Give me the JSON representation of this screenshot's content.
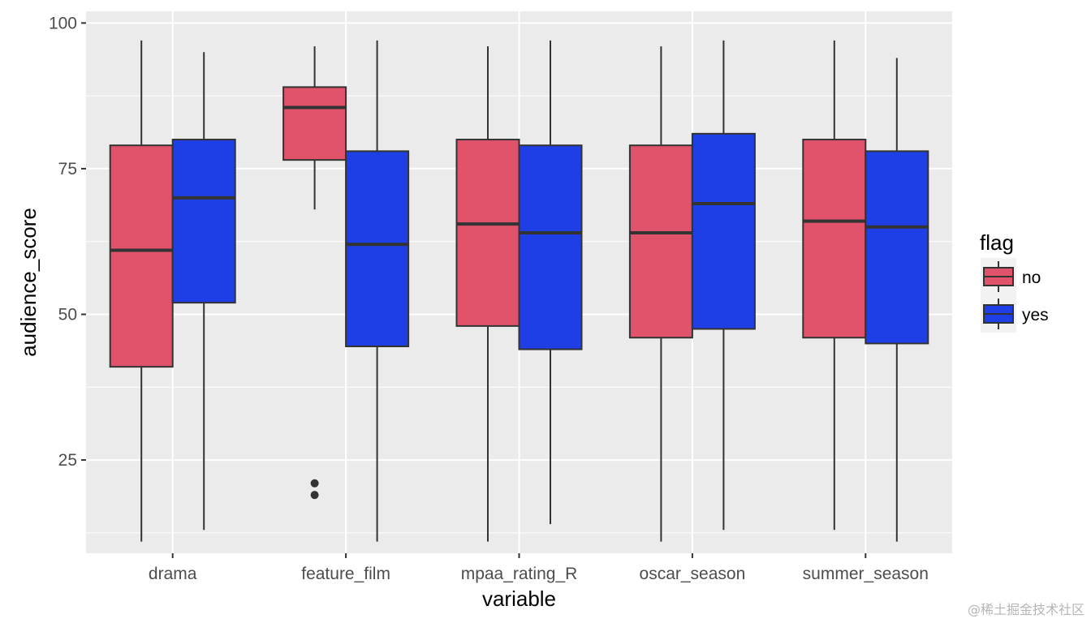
{
  "chart_data": {
    "type": "boxplot",
    "xlabel": "variable",
    "ylabel": "audience_score",
    "ylim": [
      9,
      102
    ],
    "yticks": [
      25,
      50,
      75,
      100
    ],
    "categories": [
      "drama",
      "feature_film",
      "mpaa_rating_R",
      "oscar_season",
      "summer_season"
    ],
    "legend": {
      "title": "flag",
      "position": "right",
      "entries": [
        {
          "name": "no",
          "color": "#e0536b"
        },
        {
          "name": "yes",
          "color": "#1e3fe6"
        }
      ]
    },
    "series": [
      {
        "name": "no",
        "color": "#e0536b",
        "boxes": [
          {
            "category": "drama",
            "min": 11,
            "q1": 41,
            "median": 61,
            "q3": 79,
            "max": 97,
            "outliers": []
          },
          {
            "category": "feature_film",
            "min": 68,
            "q1": 76.5,
            "median": 85.5,
            "q3": 89,
            "max": 96,
            "outliers": [
              21,
              19
            ]
          },
          {
            "category": "mpaa_rating_R",
            "min": 11,
            "q1": 48,
            "median": 65.5,
            "q3": 80,
            "max": 96,
            "outliers": []
          },
          {
            "category": "oscar_season",
            "min": 11,
            "q1": 46,
            "median": 64,
            "q3": 79,
            "max": 96,
            "outliers": []
          },
          {
            "category": "summer_season",
            "min": 13,
            "q1": 46,
            "median": 66,
            "q3": 80,
            "max": 97,
            "outliers": []
          }
        ]
      },
      {
        "name": "yes",
        "color": "#1e3fe6",
        "boxes": [
          {
            "category": "drama",
            "min": 13,
            "q1": 52,
            "median": 70,
            "q3": 80,
            "max": 95,
            "outliers": []
          },
          {
            "category": "feature_film",
            "min": 11,
            "q1": 44.5,
            "median": 62,
            "q3": 78,
            "max": 97,
            "outliers": []
          },
          {
            "category": "mpaa_rating_R",
            "min": 14,
            "q1": 44,
            "median": 64,
            "q3": 79,
            "max": 97,
            "outliers": []
          },
          {
            "category": "oscar_season",
            "min": 13,
            "q1": 47.5,
            "median": 69,
            "q3": 81,
            "max": 97,
            "outliers": []
          },
          {
            "category": "summer_season",
            "min": 11,
            "q1": 45,
            "median": 65,
            "q3": 78,
            "max": 94,
            "outliers": []
          }
        ]
      }
    ]
  },
  "watermark": "@稀土掘金技术社区"
}
